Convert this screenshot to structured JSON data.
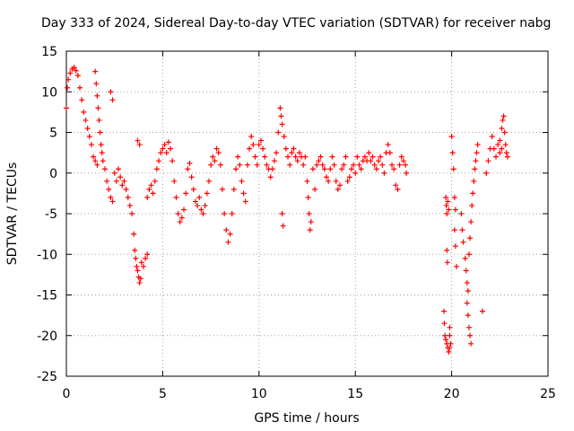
{
  "chart_data": {
    "type": "scatter",
    "title": "Day 333 of 2024, Sidereal Day-to-day VTEC variation (SDTVAR) for receiver nabg",
    "xlabel": "GPS time / hours",
    "ylabel": "SDTVAR / TECUs",
    "xlim": [
      0,
      25
    ],
    "ylim": [
      -25,
      15
    ],
    "xticks": [
      0,
      5,
      10,
      15,
      20,
      25
    ],
    "yticks": [
      -25,
      -20,
      -15,
      -10,
      -5,
      0,
      5,
      10,
      15
    ],
    "grid": true,
    "marker": "+",
    "color": "#ff0000",
    "series": [
      {
        "name": "SDTVAR",
        "points": [
          [
            0.0,
            8.0
          ],
          [
            0.05,
            10.5
          ],
          [
            0.1,
            11.5
          ],
          [
            0.2,
            12.3
          ],
          [
            0.3,
            12.8
          ],
          [
            0.4,
            13.0
          ],
          [
            0.5,
            12.6
          ],
          [
            0.6,
            12.0
          ],
          [
            0.7,
            10.5
          ],
          [
            0.8,
            9.0
          ],
          [
            0.9,
            7.5
          ],
          [
            1.0,
            6.5
          ],
          [
            1.1,
            5.5
          ],
          [
            1.2,
            4.5
          ],
          [
            1.3,
            3.5
          ],
          [
            1.4,
            2.0
          ],
          [
            1.5,
            1.5
          ],
          [
            1.6,
            1.0
          ],
          [
            1.5,
            12.5
          ],
          [
            1.55,
            11.0
          ],
          [
            1.6,
            9.5
          ],
          [
            1.65,
            8.0
          ],
          [
            1.7,
            6.5
          ],
          [
            1.75,
            5.0
          ],
          [
            1.8,
            3.5
          ],
          [
            1.85,
            2.5
          ],
          [
            1.9,
            1.5
          ],
          [
            2.0,
            0.5
          ],
          [
            2.1,
            -1.0
          ],
          [
            2.2,
            -2.0
          ],
          [
            2.3,
            -3.0
          ],
          [
            2.4,
            -3.5
          ],
          [
            2.3,
            10.0
          ],
          [
            2.4,
            9.0
          ],
          [
            2.5,
            0.0
          ],
          [
            2.6,
            -1.0
          ],
          [
            2.7,
            0.5
          ],
          [
            2.8,
            -0.5
          ],
          [
            2.9,
            -1.5
          ],
          [
            3.0,
            -1.0
          ],
          [
            3.1,
            -2.0
          ],
          [
            3.2,
            -3.0
          ],
          [
            3.3,
            -4.0
          ],
          [
            3.4,
            -5.0
          ],
          [
            3.5,
            -7.5
          ],
          [
            3.55,
            -9.5
          ],
          [
            3.6,
            -10.5
          ],
          [
            3.65,
            -11.5
          ],
          [
            3.7,
            -12.0
          ],
          [
            3.75,
            -12.8
          ],
          [
            3.8,
            -13.5
          ],
          [
            3.85,
            -13.0
          ],
          [
            3.7,
            4.0
          ],
          [
            3.8,
            3.5
          ],
          [
            3.9,
            -11.0
          ],
          [
            4.0,
            -11.5
          ],
          [
            4.1,
            -10.5
          ],
          [
            4.2,
            -10.0
          ],
          [
            4.2,
            -3.0
          ],
          [
            4.3,
            -2.0
          ],
          [
            4.4,
            -1.5
          ],
          [
            4.5,
            -2.5
          ],
          [
            4.6,
            -1.0
          ],
          [
            4.7,
            0.5
          ],
          [
            4.8,
            1.5
          ],
          [
            4.9,
            2.5
          ],
          [
            5.0,
            3.0
          ],
          [
            5.1,
            3.5
          ],
          [
            5.2,
            2.5
          ],
          [
            5.3,
            3.8
          ],
          [
            5.4,
            3.0
          ],
          [
            5.5,
            1.5
          ],
          [
            5.6,
            -1.0
          ],
          [
            5.7,
            -3.0
          ],
          [
            5.8,
            -5.0
          ],
          [
            5.9,
            -6.0
          ],
          [
            6.0,
            -5.5
          ],
          [
            6.1,
            -4.5
          ],
          [
            6.2,
            -2.5
          ],
          [
            6.3,
            0.5
          ],
          [
            6.4,
            1.2
          ],
          [
            6.5,
            -0.5
          ],
          [
            6.6,
            -2.0
          ],
          [
            6.7,
            -3.5
          ],
          [
            6.8,
            -4.0
          ],
          [
            6.9,
            -3.0
          ],
          [
            7.0,
            -4.5
          ],
          [
            7.1,
            -5.0
          ],
          [
            7.2,
            -4.0
          ],
          [
            7.3,
            -2.5
          ],
          [
            7.4,
            -1.0
          ],
          [
            7.5,
            1.0
          ],
          [
            7.6,
            2.0
          ],
          [
            7.7,
            1.5
          ],
          [
            7.8,
            3.0
          ],
          [
            7.9,
            2.5
          ],
          [
            8.0,
            1.0
          ],
          [
            8.1,
            -2.0
          ],
          [
            8.2,
            -5.0
          ],
          [
            8.3,
            -7.0
          ],
          [
            8.4,
            -8.5
          ],
          [
            8.5,
            -7.5
          ],
          [
            8.6,
            -5.0
          ],
          [
            8.7,
            -2.0
          ],
          [
            8.8,
            0.5
          ],
          [
            8.9,
            2.0
          ],
          [
            9.0,
            1.0
          ],
          [
            9.1,
            -1.0
          ],
          [
            9.2,
            -2.5
          ],
          [
            9.3,
            -3.5
          ],
          [
            9.4,
            1.0
          ],
          [
            9.5,
            3.0
          ],
          [
            9.6,
            4.5
          ],
          [
            9.7,
            3.5
          ],
          [
            9.8,
            2.0
          ],
          [
            9.9,
            1.0
          ],
          [
            10.0,
            3.5
          ],
          [
            10.1,
            4.0
          ],
          [
            10.2,
            3.0
          ],
          [
            10.3,
            2.0
          ],
          [
            10.4,
            1.0
          ],
          [
            10.5,
            0.5
          ],
          [
            10.6,
            -0.5
          ],
          [
            10.7,
            0.5
          ],
          [
            10.8,
            1.5
          ],
          [
            10.9,
            2.5
          ],
          [
            11.0,
            5.0
          ],
          [
            11.1,
            8.0
          ],
          [
            11.15,
            7.0
          ],
          [
            11.2,
            6.0
          ],
          [
            11.3,
            4.5
          ],
          [
            11.2,
            -5.0
          ],
          [
            11.25,
            -6.5
          ],
          [
            11.4,
            3.0
          ],
          [
            11.5,
            2.0
          ],
          [
            11.6,
            1.0
          ],
          [
            11.7,
            2.5
          ],
          [
            11.8,
            3.0
          ],
          [
            11.9,
            2.0
          ],
          [
            12.0,
            1.5
          ],
          [
            12.1,
            2.5
          ],
          [
            12.2,
            2.0
          ],
          [
            12.3,
            1.0
          ],
          [
            12.4,
            2.0
          ],
          [
            12.5,
            -1.0
          ],
          [
            12.55,
            -3.0
          ],
          [
            12.6,
            -5.0
          ],
          [
            12.65,
            -7.0
          ],
          [
            12.7,
            -6.0
          ],
          [
            12.8,
            0.5
          ],
          [
            12.9,
            -2.0
          ],
          [
            13.0,
            1.0
          ],
          [
            13.1,
            1.5
          ],
          [
            13.2,
            2.0
          ],
          [
            13.3,
            1.0
          ],
          [
            13.4,
            0.5
          ],
          [
            13.5,
            -0.5
          ],
          [
            13.6,
            -1.0
          ],
          [
            13.7,
            0.5
          ],
          [
            13.8,
            2.0
          ],
          [
            13.9,
            1.0
          ],
          [
            14.0,
            -1.0
          ],
          [
            14.1,
            -2.0
          ],
          [
            14.2,
            -1.5
          ],
          [
            14.3,
            0.5
          ],
          [
            14.4,
            1.0
          ],
          [
            14.5,
            2.0
          ],
          [
            14.6,
            -1.0
          ],
          [
            14.7,
            -0.5
          ],
          [
            14.8,
            0.5
          ],
          [
            14.9,
            1.0
          ],
          [
            15.0,
            0.0
          ],
          [
            15.1,
            2.0
          ],
          [
            15.2,
            1.0
          ],
          [
            15.3,
            0.5
          ],
          [
            15.4,
            1.5
          ],
          [
            15.5,
            2.0
          ],
          [
            15.6,
            1.5
          ],
          [
            15.7,
            2.5
          ],
          [
            15.8,
            1.5
          ],
          [
            15.9,
            2.0
          ],
          [
            16.0,
            1.0
          ],
          [
            16.1,
            0.5
          ],
          [
            16.2,
            1.5
          ],
          [
            16.3,
            2.0
          ],
          [
            16.4,
            1.0
          ],
          [
            16.5,
            0.0
          ],
          [
            16.6,
            2.5
          ],
          [
            16.7,
            3.5
          ],
          [
            16.8,
            2.5
          ],
          [
            16.9,
            1.0
          ],
          [
            17.0,
            0.5
          ],
          [
            17.1,
            -1.5
          ],
          [
            17.2,
            -2.0
          ],
          [
            17.3,
            1.0
          ],
          [
            17.4,
            2.0
          ],
          [
            17.5,
            1.5
          ],
          [
            17.6,
            1.0
          ],
          [
            17.65,
            0.0
          ],
          [
            19.6,
            -17.0
          ],
          [
            19.62,
            -18.5
          ],
          [
            19.65,
            -20.0
          ],
          [
            19.7,
            -20.5
          ],
          [
            19.75,
            -21.0
          ],
          [
            19.8,
            -21.5
          ],
          [
            19.85,
            -22.0
          ],
          [
            19.7,
            -3.0
          ],
          [
            19.72,
            -4.0
          ],
          [
            19.75,
            -5.0
          ],
          [
            19.8,
            -3.5
          ],
          [
            19.85,
            -4.5
          ],
          [
            19.75,
            -9.5
          ],
          [
            19.78,
            -11.0
          ],
          [
            19.9,
            -21.5
          ],
          [
            19.95,
            -21.0
          ],
          [
            19.9,
            -20.0
          ],
          [
            19.9,
            -19.0
          ],
          [
            20.0,
            4.5
          ],
          [
            20.05,
            2.5
          ],
          [
            20.1,
            0.5
          ],
          [
            20.15,
            -3.0
          ],
          [
            20.2,
            -4.5
          ],
          [
            20.15,
            -7.0
          ],
          [
            20.2,
            -9.0
          ],
          [
            20.25,
            -11.5
          ],
          [
            20.5,
            -5.0
          ],
          [
            20.55,
            -7.0
          ],
          [
            20.6,
            -8.5
          ],
          [
            20.7,
            -10.5
          ],
          [
            20.75,
            -12.0
          ],
          [
            20.8,
            -13.5
          ],
          [
            20.85,
            -14.5
          ],
          [
            20.8,
            -16.0
          ],
          [
            20.85,
            -17.5
          ],
          [
            20.9,
            -19.0
          ],
          [
            20.95,
            -20.0
          ],
          [
            21.0,
            -21.0
          ],
          [
            20.9,
            -10.0
          ],
          [
            20.95,
            -8.0
          ],
          [
            21.0,
            -6.0
          ],
          [
            21.05,
            -4.0
          ],
          [
            21.1,
            -2.5
          ],
          [
            21.15,
            -1.0
          ],
          [
            21.2,
            0.5
          ],
          [
            21.25,
            1.5
          ],
          [
            21.3,
            2.5
          ],
          [
            21.35,
            3.5
          ],
          [
            21.6,
            -17.0
          ],
          [
            21.8,
            0.0
          ],
          [
            21.9,
            1.5
          ],
          [
            22.0,
            3.0
          ],
          [
            22.1,
            4.5
          ],
          [
            22.2,
            3.0
          ],
          [
            22.3,
            2.0
          ],
          [
            22.4,
            3.5
          ],
          [
            22.5,
            4.0
          ],
          [
            22.6,
            5.5
          ],
          [
            22.65,
            6.5
          ],
          [
            22.7,
            7.0
          ],
          [
            22.75,
            5.0
          ],
          [
            22.8,
            3.5
          ],
          [
            22.85,
            2.5
          ],
          [
            22.9,
            2.0
          ],
          [
            22.6,
            3.0
          ],
          [
            22.5,
            2.5
          ]
        ]
      }
    ]
  }
}
